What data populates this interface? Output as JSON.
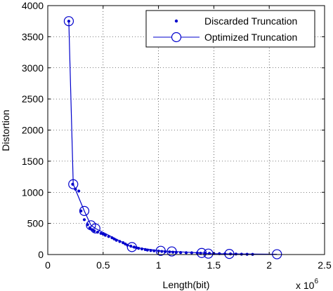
{
  "chart_data": {
    "type": "line",
    "title": "",
    "xlabel": "Length(bit)",
    "ylabel": "Distortion",
    "x_multiplier_label": "x 10",
    "x_multiplier_exponent": "6",
    "x_scale": 1000000,
    "xlim": [
      0,
      2.5
    ],
    "ylim": [
      0,
      4000
    ],
    "xticks": [
      0,
      0.5,
      1,
      1.5,
      2,
      2.5
    ],
    "xtick_labels": [
      "0",
      "0.5",
      "1",
      "1.5",
      "2",
      "2.5"
    ],
    "yticks": [
      0,
      500,
      1000,
      1500,
      2000,
      2500,
      3000,
      3500,
      4000
    ],
    "ytick_labels": [
      "0",
      "500",
      "1000",
      "1500",
      "2000",
      "2500",
      "3000",
      "3500",
      "4000"
    ],
    "grid": true,
    "legend_position": "top-right",
    "colors": {
      "series": "#0000cc",
      "axes": "#000000",
      "grid": "#000000"
    },
    "series": [
      {
        "name": "Discarded Truncation",
        "style": "dots",
        "x": [
          0.19,
          0.225,
          0.25,
          0.28,
          0.3,
          0.33,
          0.36,
          0.38,
          0.4,
          0.42,
          0.45,
          0.48,
          0.5,
          0.52,
          0.55,
          0.58,
          0.6,
          0.62,
          0.65,
          0.68,
          0.7,
          0.72,
          0.75,
          0.78,
          0.8,
          0.82,
          0.85,
          0.88,
          0.9,
          0.93,
          0.96,
          1.0,
          1.03,
          1.06,
          1.1,
          1.13,
          1.16,
          1.2,
          1.25,
          1.3,
          1.35,
          1.38,
          1.42,
          1.46,
          1.5,
          1.55,
          1.6,
          1.65,
          1.7,
          1.75,
          1.8,
          1.85
        ],
        "y": [
          3750,
          1130,
          1050,
          1020,
          700,
          560,
          480,
          430,
          400,
          380,
          360,
          340,
          330,
          310,
          290,
          270,
          250,
          230,
          210,
          190,
          170,
          150,
          135,
          120,
          110,
          100,
          90,
          80,
          72,
          65,
          60,
          55,
          50,
          46,
          42,
          38,
          35,
          32,
          30,
          28,
          25,
          22,
          20,
          18,
          16,
          14,
          12,
          10,
          8,
          6,
          4,
          3
        ]
      },
      {
        "name": "Optimized Truncation",
        "style": "line-circles",
        "x": [
          0.19,
          0.23,
          0.33,
          0.39,
          0.43,
          0.76,
          1.02,
          1.12,
          1.39,
          1.45,
          1.64,
          2.07
        ],
        "y": [
          3750,
          1130,
          700,
          470,
          420,
          120,
          60,
          50,
          25,
          15,
          10,
          5
        ]
      }
    ]
  }
}
